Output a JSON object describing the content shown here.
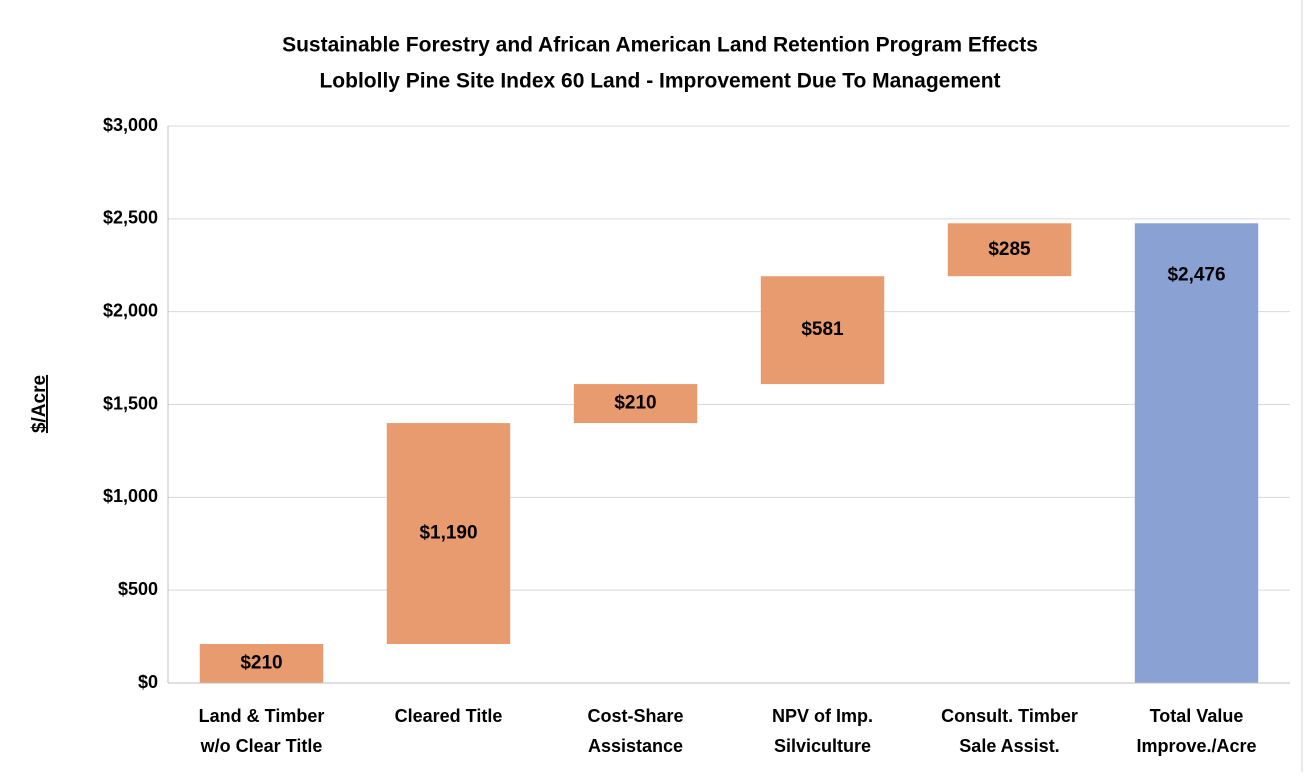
{
  "chart_data": {
    "type": "waterfall",
    "title": "Sustainable Forestry and African American Land Retention Program Effects",
    "subtitle": "Loblolly Pine Site Index 60 Land - Improvement Due To Management",
    "y_label": "$/Acre",
    "categories": [
      [
        "Land & Timber",
        "w/o Clear Title"
      ],
      [
        "Cleared Title"
      ],
      [
        "Cost-Share",
        "Assistance"
      ],
      [
        "NPV of Imp.",
        "Silviculture"
      ],
      [
        "Consult. Timber",
        "Sale Assist."
      ],
      [
        "Total Value",
        "Improve./Acre"
      ]
    ],
    "values": [
      210,
      1190,
      210,
      581,
      285,
      2476
    ],
    "value_labels": [
      "$210",
      "$1,190",
      "$210",
      "$581",
      "$285",
      "$2,476"
    ],
    "is_total": [
      false,
      false,
      false,
      false,
      false,
      true
    ],
    "color": "#e89b6f",
    "total_color": "#8aa1d3",
    "ylim": [
      0,
      3000
    ],
    "yticks": [
      {
        "value": 0,
        "label": "$0"
      },
      {
        "value": 500,
        "label": "$500"
      },
      {
        "value": 1000,
        "label": "$1,000"
      },
      {
        "value": 1500,
        "label": "$1,500"
      },
      {
        "value": 2000,
        "label": "$2,000"
      },
      {
        "value": 2500,
        "label": "$2,500"
      },
      {
        "value": 3000,
        "label": "$3,000"
      }
    ],
    "grid": true
  }
}
